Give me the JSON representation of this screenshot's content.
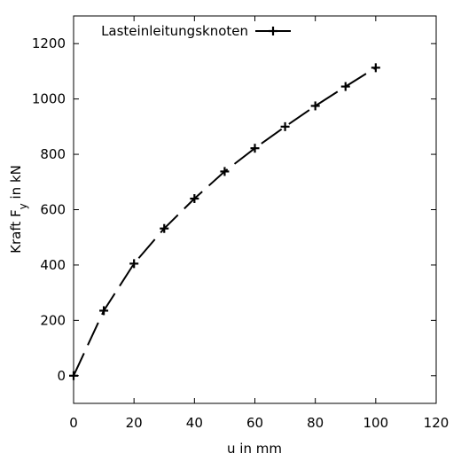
{
  "chart_data": {
    "type": "line",
    "title": "",
    "xlabel": "u in mm",
    "ylabel_main": "Kraft F",
    "ylabel_sub": "y",
    "ylabel_unit": " in kN",
    "xlim": [
      0,
      120
    ],
    "ylim": [
      -100,
      1300
    ],
    "xticks": [
      0,
      20,
      40,
      60,
      80,
      100,
      120
    ],
    "yticks": [
      0,
      200,
      400,
      600,
      800,
      1000,
      1200
    ],
    "grid": false,
    "legend_position": "top-left",
    "line_color": "#000000",
    "line_style": "dashed",
    "series": [
      {
        "name": "Lasteinleitungsknoten",
        "x": [
          0,
          10,
          20,
          30,
          40,
          50,
          60,
          70,
          80,
          90,
          100
        ],
        "y": [
          0,
          235,
          405,
          532,
          640,
          738,
          822,
          900,
          975,
          1045,
          1113
        ],
        "marker_x": [
          0,
          10,
          20,
          30,
          40,
          50,
          60,
          70,
          80,
          90,
          100
        ],
        "marker_y": [
          0,
          235,
          405,
          532,
          640,
          738,
          822,
          900,
          975,
          1045,
          1113
        ]
      }
    ]
  }
}
